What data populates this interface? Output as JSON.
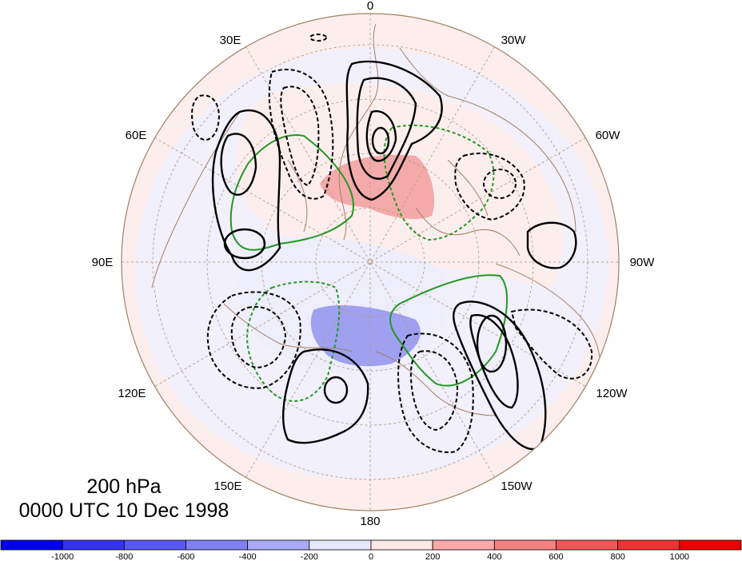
{
  "title": {
    "level": "200 hPa",
    "time": "0000 UTC 10 Dec 1998"
  },
  "longitude_labels": [
    "0",
    "30W",
    "60W",
    "90W",
    "120W",
    "150W",
    "180",
    "150E",
    "120E",
    "90E",
    "60E",
    "30E"
  ],
  "colorbar": {
    "tick_labels": [
      "-1000",
      "-800",
      "-600",
      "-400",
      "-200",
      "0",
      "200",
      "400",
      "600",
      "800",
      "1000"
    ],
    "colors": [
      "#0000ee",
      "#3333f0",
      "#5858f2",
      "#8080f4",
      "#aaaaf8",
      "#e8e8fc",
      "#fde8e8",
      "#f8aaaa",
      "#f48080",
      "#f05858",
      "#ee3333",
      "#ee0000"
    ]
  },
  "colors": {
    "positive_shading": "#f4aaaa",
    "negative_shading": "#a0a0f0",
    "light_positive": "#fdeeee",
    "light_negative": "#eeeefc",
    "contours": "#000000",
    "green_contours": "#229922",
    "coastline": "#a08060",
    "graticule": "#b0967a"
  }
}
